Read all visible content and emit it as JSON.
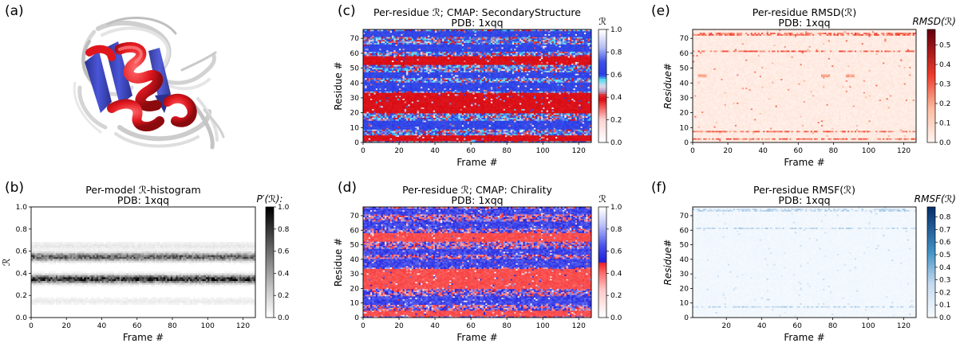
{
  "panels": {
    "a": {
      "letter": "(a)"
    },
    "b": {
      "letter": "(b)"
    },
    "c": {
      "letter": "(c)"
    },
    "d": {
      "letter": "(d)"
    },
    "e": {
      "letter": "(e)"
    },
    "f": {
      "letter": "(f)"
    }
  },
  "colors": {
    "helix": "#e0161e",
    "sheet": "#3a44c8",
    "coil": "#c9c9c9"
  },
  "chart_data": [
    {
      "id": "b",
      "type": "heatmap",
      "title": "Per-model ℛ-histogram",
      "subtitle": "PDB: 1xqq",
      "xlabel": "Frame #",
      "ylabel": "ℛ",
      "xlim": [
        0,
        127
      ],
      "ylim": [
        0.0,
        1.0
      ],
      "xticks": [
        "0",
        "20",
        "40",
        "60",
        "80",
        "100",
        "120"
      ],
      "yticks": [
        "0.0",
        "0.2",
        "0.4",
        "0.6",
        "0.8",
        "1.0"
      ],
      "colorbar": {
        "label": "P′(ℛ):",
        "ticks": [
          "0.0",
          "0.2",
          "0.4",
          "0.6",
          "0.8",
          "1.0"
        ],
        "cmap": "Greys"
      },
      "density_bands": [
        {
          "center": 0.35,
          "peak": 0.95
        },
        {
          "center": 0.55,
          "peak": 0.75
        },
        {
          "center": 0.15,
          "peak": 0.1
        },
        {
          "center": 0.65,
          "peak": 0.12
        }
      ]
    },
    {
      "id": "c",
      "type": "heatmap",
      "title": "Per-residue ℛ; CMAP: SecondaryStructure",
      "subtitle": "PDB: 1xqq",
      "xlabel": "Frame #",
      "ylabel": "Residue #",
      "xlim": [
        0,
        127
      ],
      "ylim": [
        0,
        76
      ],
      "xticks": [
        "0",
        "20",
        "40",
        "60",
        "80",
        "100",
        "120"
      ],
      "yticks": [
        "0",
        "10",
        "20",
        "30",
        "40",
        "50",
        "60",
        "70"
      ],
      "colorbar": {
        "label": "ℛ",
        "ticks": [
          "0.0",
          "0.2",
          "0.4",
          "0.6",
          "0.8",
          "1.0"
        ],
        "cmap": "SecondaryStructure"
      },
      "residue_classes": "CHHHHCCCCSSSSSSCCCCCHHHHHHHHHHHHHHCSSSSSSCCCSSSSCCCCCHHHHHHCCCSSSSSCCCCCSSSSC"
    },
    {
      "id": "d",
      "type": "heatmap",
      "title": "Per-residue ℛ; CMAP: Chirality",
      "subtitle": "PDB: 1xqq",
      "xlabel": "Frame #",
      "ylabel": "Residue #",
      "xlim": [
        0,
        127
      ],
      "ylim": [
        0,
        76
      ],
      "xticks": [
        "0",
        "20",
        "40",
        "60",
        "80",
        "100",
        "120"
      ],
      "yticks": [
        "0",
        "10",
        "20",
        "30",
        "40",
        "50",
        "60",
        "70"
      ],
      "colorbar": {
        "label": "ℛ",
        "ticks": [
          "0.0",
          "0.2",
          "0.4",
          "0.6",
          "0.8",
          "1.0"
        ],
        "cmap": "Chirality"
      },
      "residue_classes": "CHHHHCCCCSSSSSSCCCCCHHHHHHHHHHHHHHCSSSSSSCCCSSSSCCCCCHHHHHHCCCSSSSSCCCCCSSSSC"
    },
    {
      "id": "e",
      "type": "heatmap",
      "title": "Per-residue RMSD(ℛ)",
      "subtitle": "PDB: 1xqq",
      "xlabel": "Frame #",
      "ylabel": "Residue#",
      "xlim": [
        0,
        127
      ],
      "ylim": [
        0,
        76
      ],
      "xticks": [
        "0",
        "20",
        "40",
        "60",
        "80",
        "100",
        "120"
      ],
      "yticks": [
        "0",
        "10",
        "20",
        "30",
        "40",
        "50",
        "60",
        "70"
      ],
      "colorbar": {
        "label": "RMSD(ℛ):",
        "ticks": [
          "0.0",
          "0.1",
          "0.2",
          "0.3",
          "0.4",
          "0.5"
        ],
        "cmap": "Reds",
        "vmax": 0.58
      },
      "high_rows": [
        2,
        7,
        61,
        72,
        73
      ]
    },
    {
      "id": "f",
      "type": "heatmap",
      "title": "Per-residue RMSF(ℛ)",
      "subtitle": "PDB: 1xqq",
      "xlabel": "Frame #",
      "ylabel": "Residue#",
      "xlim": [
        1,
        127
      ],
      "ylim": [
        0,
        76
      ],
      "xticks": [
        "20",
        "40",
        "60",
        "80",
        "100",
        "120"
      ],
      "yticks": [
        "0",
        "10",
        "20",
        "30",
        "40",
        "50",
        "60",
        "70"
      ],
      "colorbar": {
        "label": "RMSF(ℛ):",
        "ticks": [
          "0.0",
          "0.1",
          "0.2",
          "0.3",
          "0.4",
          "0.5",
          "0.6",
          "0.7",
          "0.8"
        ],
        "cmap": "Blues",
        "vmax": 0.88
      },
      "high_rows": [
        7,
        61,
        73,
        74
      ]
    }
  ]
}
